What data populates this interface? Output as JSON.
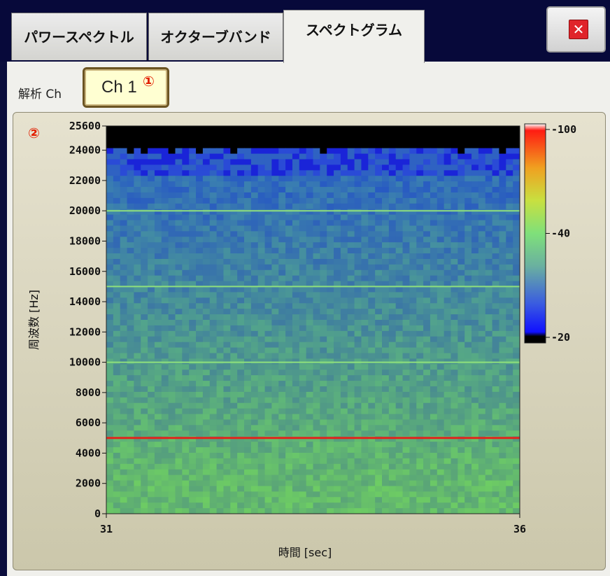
{
  "tabs": [
    {
      "label": "パワースペクトル",
      "active": false
    },
    {
      "label": "オクターブバンド",
      "active": false
    },
    {
      "label": "スペクトグラム",
      "active": true
    }
  ],
  "close_icon": "close-icon",
  "analysis": {
    "label": "解析 Ch",
    "channel_button": "Ch 1"
  },
  "markers": {
    "m1": "①",
    "m2": "②"
  },
  "colors": {
    "accent_red": "#e21f00",
    "titlebar": "#07093a"
  },
  "chart_data": {
    "type": "heatmap",
    "title": "",
    "xlabel": "時間 [sec]",
    "ylabel": "周波数 [Hz]",
    "xlim": [
      31,
      36
    ],
    "ylim": [
      0,
      25600
    ],
    "x_ticks": [
      "31",
      "36"
    ],
    "y_ticks": [
      "0",
      "2000",
      "4000",
      "6000",
      "8000",
      "10000",
      "12000",
      "14000",
      "16000",
      "18000",
      "20000",
      "22000",
      "24000",
      "25600"
    ],
    "y_tick_values": [
      0,
      2000,
      4000,
      6000,
      8000,
      10000,
      12000,
      14000,
      16000,
      18000,
      20000,
      22000,
      24000,
      25600
    ],
    "colorbar": {
      "ticks": [
        "-100",
        "-40",
        "-20"
      ],
      "tick_positions": [
        0,
        0.5,
        1
      ]
    },
    "tonal_lines": [
      {
        "frequency": 5000,
        "level": "red"
      },
      {
        "frequency": 10000,
        "level": "green"
      },
      {
        "frequency": 15000,
        "level": "green"
      },
      {
        "frequency": 20000,
        "level": "green"
      }
    ],
    "cutoff_frequency": 23800
  }
}
